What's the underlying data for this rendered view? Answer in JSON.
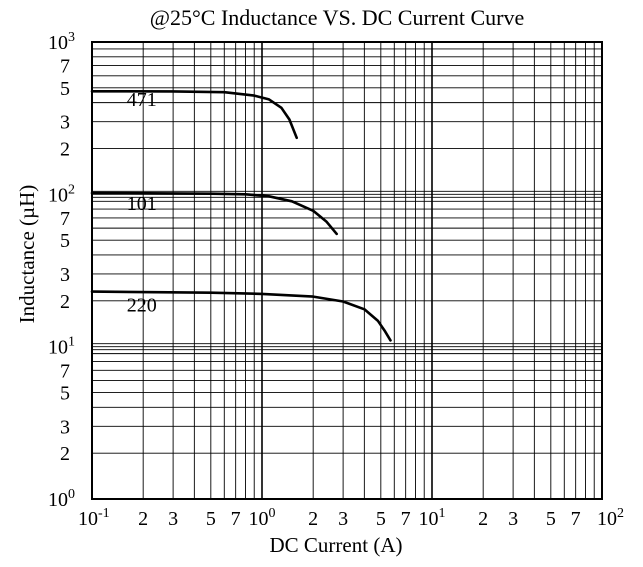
{
  "chart_data": {
    "type": "line",
    "title": "@25°C Inductance VS. DC Current Curve",
    "xlabel": "DC Current (A)",
    "ylabel": "Inductance (µH)",
    "x_scale": "log",
    "y_scale": "log",
    "xlim": [
      0.1,
      100
    ],
    "ylim": [
      1,
      1000
    ],
    "grid": true,
    "x_ticks": [
      {
        "value": 0.1,
        "base": "10",
        "exp": "-1"
      },
      {
        "value": 0.2,
        "base": "2",
        "exp": ""
      },
      {
        "value": 0.3,
        "base": "3",
        "exp": ""
      },
      {
        "value": 0.5,
        "base": "5",
        "exp": ""
      },
      {
        "value": 0.7,
        "base": "7",
        "exp": ""
      },
      {
        "value": 1,
        "base": "10",
        "exp": "0"
      },
      {
        "value": 2,
        "base": "2",
        "exp": ""
      },
      {
        "value": 3,
        "base": "3",
        "exp": ""
      },
      {
        "value": 5,
        "base": "5",
        "exp": ""
      },
      {
        "value": 7,
        "base": "7",
        "exp": ""
      },
      {
        "value": 10,
        "base": "10",
        "exp": "1"
      },
      {
        "value": 20,
        "base": "2",
        "exp": ""
      },
      {
        "value": 30,
        "base": "3",
        "exp": ""
      },
      {
        "value": 50,
        "base": "5",
        "exp": ""
      },
      {
        "value": 70,
        "base": "7",
        "exp": ""
      },
      {
        "value": 100,
        "base": "10",
        "exp": "2"
      }
    ],
    "y_ticks": [
      {
        "value": 1000,
        "base": "10",
        "exp": "3"
      },
      {
        "value": 700,
        "base": "7",
        "exp": ""
      },
      {
        "value": 500,
        "base": "5",
        "exp": ""
      },
      {
        "value": 300,
        "base": "3",
        "exp": ""
      },
      {
        "value": 200,
        "base": "2",
        "exp": ""
      },
      {
        "value": 100,
        "base": "10",
        "exp": "2"
      },
      {
        "value": 70,
        "base": "7",
        "exp": ""
      },
      {
        "value": 50,
        "base": "5",
        "exp": ""
      },
      {
        "value": 30,
        "base": "3",
        "exp": ""
      },
      {
        "value": 20,
        "base": "2",
        "exp": ""
      },
      {
        "value": 10,
        "base": "10",
        "exp": "1"
      },
      {
        "value": 7,
        "base": "7",
        "exp": ""
      },
      {
        "value": 5,
        "base": "5",
        "exp": ""
      },
      {
        "value": 3,
        "base": "3",
        "exp": ""
      },
      {
        "value": 2,
        "base": "2",
        "exp": ""
      },
      {
        "value": 1,
        "base": "10",
        "exp": "0"
      }
    ],
    "series": [
      {
        "name": "471",
        "label_at": [
          0.16,
          380
        ],
        "points": [
          [
            0.1,
            475
          ],
          [
            0.3,
            474
          ],
          [
            0.6,
            468
          ],
          [
            0.9,
            445
          ],
          [
            1.1,
            420
          ],
          [
            1.3,
            370
          ],
          [
            1.45,
            310
          ],
          [
            1.6,
            235
          ]
        ]
      },
      {
        "name": "101",
        "label_at": [
          0.16,
          79
        ],
        "points": [
          [
            0.1,
            102
          ],
          [
            0.5,
            101
          ],
          [
            0.8,
            100
          ],
          [
            1.1,
            97
          ],
          [
            1.5,
            90
          ],
          [
            2.0,
            78
          ],
          [
            2.4,
            66
          ],
          [
            2.75,
            55
          ]
        ]
      },
      {
        "name": "220",
        "label_at": [
          0.16,
          17
        ],
        "points": [
          [
            0.1,
            23
          ],
          [
            0.5,
            22.6
          ],
          [
            1.0,
            22.2
          ],
          [
            2.0,
            21.3
          ],
          [
            3.0,
            19.8
          ],
          [
            4.0,
            17.6
          ],
          [
            4.8,
            14.8
          ],
          [
            5.3,
            12.6
          ],
          [
            5.7,
            11
          ]
        ]
      }
    ]
  }
}
